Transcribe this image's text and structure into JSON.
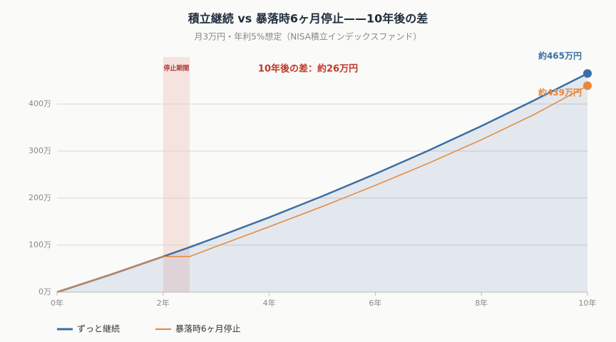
{
  "chart_data": {
    "type": "line",
    "title": "積立継続 vs 暴落時6ヶ月停止——10年後の差",
    "subtitle": "月3万円・年利5%想定（NISA積立インデックスファンド）",
    "x": [
      0,
      1,
      2,
      2.5,
      3,
      4,
      5,
      6,
      7,
      8,
      9,
      10
    ],
    "series": [
      {
        "name": "ずっと継続",
        "color": "#3b6ea5",
        "values": [
          0,
          36.8,
          75.6,
          95.5,
          116.3,
          159,
          204,
          251.3,
          301,
          353.2,
          408.2,
          465
        ]
      },
      {
        "name": "暴落時6ヶ月停止",
        "color": "#e8873a",
        "values": [
          0,
          36.8,
          75.6,
          75.6,
          97,
          139,
          182,
          227,
          274,
          324,
          378,
          439
        ]
      }
    ],
    "end_labels": [
      "約465万円",
      "約439万円"
    ],
    "difference_label": "10年後の差：約26万円",
    "pause_label": "停止期間",
    "pause_range": [
      2,
      2.5
    ],
    "xlim": [
      0,
      10
    ],
    "xticks": [
      {
        "value": 0,
        "label": "0年"
      },
      {
        "value": 2,
        "label": "2年"
      },
      {
        "value": 4,
        "label": "4年"
      },
      {
        "value": 6,
        "label": "6年"
      },
      {
        "value": 8,
        "label": "8年"
      },
      {
        "value": 10,
        "label": "10年"
      }
    ],
    "ylim": [
      0,
      500
    ],
    "yticks": [
      {
        "value": 0,
        "label": "0万"
      },
      {
        "value": 100,
        "label": "100万"
      },
      {
        "value": 200,
        "label": "200万"
      },
      {
        "value": 300,
        "label": "300万"
      },
      {
        "value": 400,
        "label": "400万"
      }
    ],
    "grid": true,
    "legend": "bottom-left"
  }
}
